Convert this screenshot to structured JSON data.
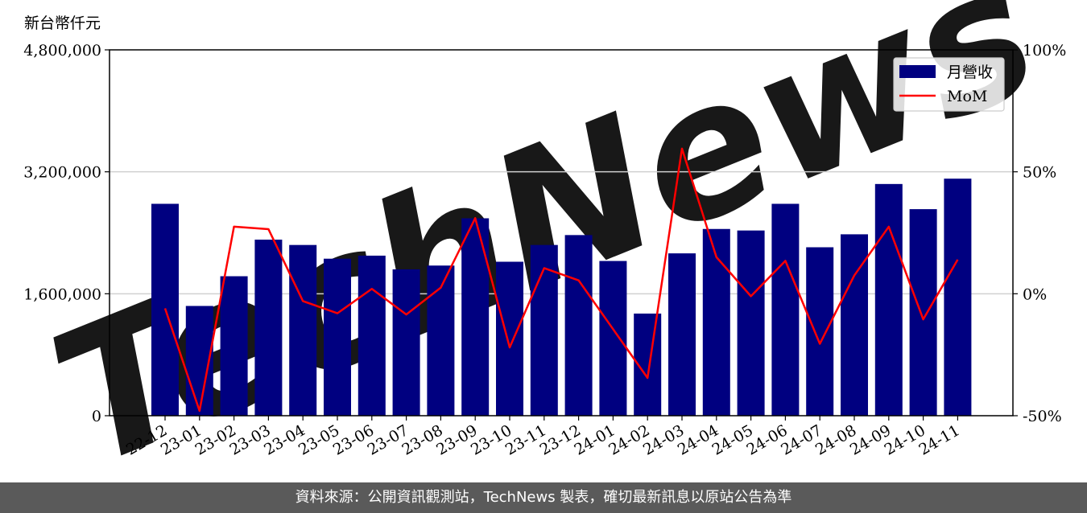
{
  "unit_label": "新台幣仟元",
  "footer": "資料來源：公開資訊觀測站，TechNews 製表，確切最新訊息以原站公告為準",
  "watermark": "TechNews",
  "chart_data": {
    "type": "bar",
    "categories": [
      "22-12",
      "23-01",
      "23-02",
      "23-03",
      "23-04",
      "23-05",
      "23-06",
      "23-07",
      "23-08",
      "23-09",
      "23-10",
      "23-11",
      "23-12",
      "24-01",
      "24-02",
      "24-03",
      "24-04",
      "24-05",
      "24-06",
      "24-07",
      "24-08",
      "24-09",
      "24-10",
      "24-11"
    ],
    "series": [
      {
        "name": "月營收",
        "type": "bar",
        "axis": "left",
        "color": "#000080",
        "values": [
          2780000,
          1440000,
          1830000,
          2310000,
          2240000,
          2060000,
          2100000,
          1920000,
          1970000,
          2590000,
          2020000,
          2240000,
          2370000,
          2030000,
          1340000,
          2130000,
          2450000,
          2430000,
          2780000,
          2210000,
          2380000,
          3040000,
          2710000,
          3110000
        ]
      },
      {
        "name": "MoM",
        "type": "line",
        "axis": "right",
        "color": "#ff0000",
        "values": [
          -6,
          -48,
          27.5,
          26.5,
          -3,
          -8,
          2,
          -8.5,
          2.5,
          31,
          -22,
          10.5,
          5.5,
          -14.5,
          -34.5,
          59.5,
          15,
          -1,
          13.5,
          -20.5,
          7.5,
          27.5,
          -10.5,
          14
        ]
      }
    ],
    "y_left": {
      "ylim": [
        0,
        4800000
      ],
      "ticks": [
        "0",
        "1,600,000",
        "3,200,000",
        "4,800,000"
      ]
    },
    "y_right": {
      "ylim": [
        -50,
        100
      ],
      "ticks": [
        "-50%",
        "0%",
        "50%",
        "100%"
      ]
    },
    "grid": "horizontal",
    "legend": "top-right"
  }
}
